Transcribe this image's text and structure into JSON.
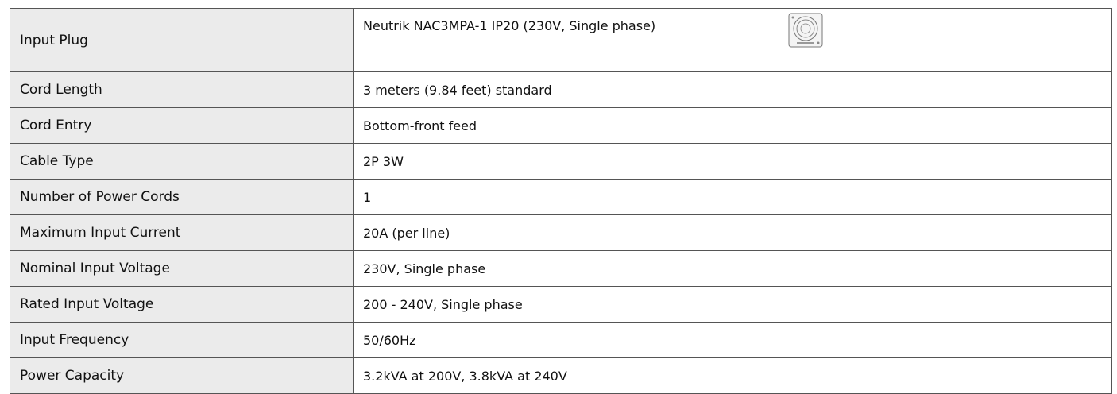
{
  "table": {
    "rows": [
      [
        "Input Plug",
        "Neutrik NAC3MPA-1 IP20 (230V, Single phase)"
      ],
      [
        "Cord Length",
        "3 meters (9.84 feet) standard"
      ],
      [
        "Cord Entry",
        "Bottom-front feed"
      ],
      [
        "Cable Type",
        "2P 3W"
      ],
      [
        "Number of Power Cords",
        "1"
      ],
      [
        "Maximum Input Current",
        "20A (per line)"
      ],
      [
        "Nominal Input Voltage",
        "230V, Single phase"
      ],
      [
        "Rated Input Voltage",
        "200 - 240V, Single phase"
      ],
      [
        "Input Frequency",
        "50/60Hz"
      ],
      [
        "Power Capacity",
        "3.2kVA at 200V, 3.8kVA at 240V"
      ]
    ]
  }
}
